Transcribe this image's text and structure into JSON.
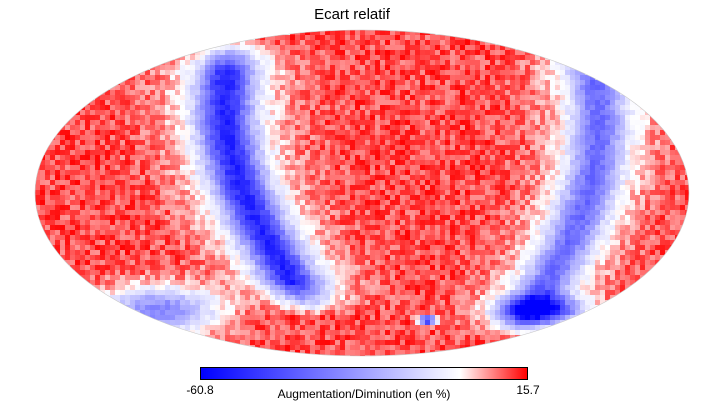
{
  "chart_data": {
    "type": "heatmap",
    "projection": "mollweide",
    "title": "Ecart relatif",
    "colorbar": {
      "label": "Augmentation/Diminution (en %)",
      "min": -60.8,
      "max": 15.7,
      "min_label": "-60.8",
      "max_label": "15.7",
      "colormap": "blue-white-red",
      "low_color": "#0000ff",
      "mid_color": "#ffffff",
      "high_color": "#ff0000"
    },
    "background_value_percent": 11,
    "features": [
      {
        "name": "left blue band",
        "kind": "band",
        "value_percent": -35
      },
      {
        "name": "right blue band",
        "kind": "band",
        "value_percent": -30
      },
      {
        "name": "lower left blue patch",
        "kind": "patch",
        "value_percent": -40
      },
      {
        "name": "lower right blue patch",
        "kind": "patch",
        "value_percent": -45
      },
      {
        "name": "small blue spot near bottom",
        "kind": "spot",
        "value_percent": -60
      }
    ]
  }
}
